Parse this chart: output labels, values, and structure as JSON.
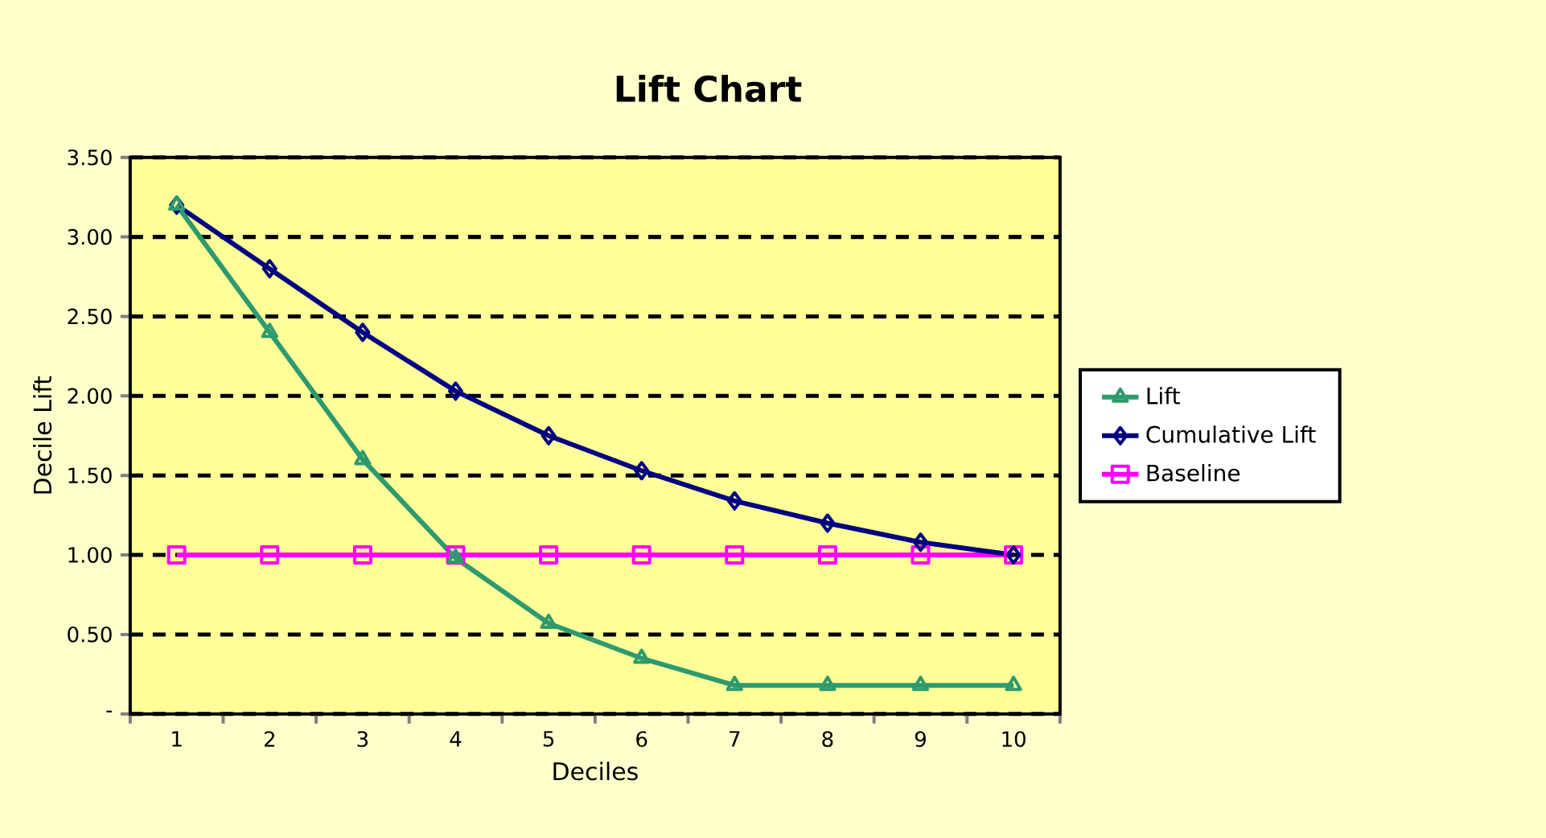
{
  "chart_data": {
    "type": "line",
    "title": "Lift Chart",
    "xlabel": "Deciles",
    "ylabel": "Decile Lift",
    "categories": [
      "1",
      "2",
      "3",
      "4",
      "5",
      "6",
      "7",
      "8",
      "9",
      "10"
    ],
    "series": [
      {
        "name": "Lift",
        "color": "#2e9a6e",
        "marker": "triangle",
        "values": [
          3.2,
          2.4,
          1.6,
          0.98,
          0.57,
          0.35,
          0.18,
          0.18,
          0.18,
          0.18
        ]
      },
      {
        "name": "Cumulative Lift",
        "color": "#000080",
        "marker": "diamond",
        "values": [
          3.2,
          2.8,
          2.4,
          2.03,
          1.75,
          1.53,
          1.34,
          1.2,
          1.08,
          1.0
        ]
      },
      {
        "name": "Baseline",
        "color": "#ff00ff",
        "marker": "square",
        "values": [
          1.0,
          1.0,
          1.0,
          1.0,
          1.0,
          1.0,
          1.0,
          1.0,
          1.0,
          1.0
        ]
      }
    ],
    "ylim": [
      0,
      3.5
    ],
    "yticks": [
      {
        "value": 0,
        "label": "-"
      },
      {
        "value": 0.5,
        "label": "0.50"
      },
      {
        "value": 1,
        "label": "1.00"
      },
      {
        "value": 1.5,
        "label": "1.50"
      },
      {
        "value": 2,
        "label": "2.00"
      },
      {
        "value": 2.5,
        "label": "2.50"
      },
      {
        "value": 3,
        "label": "3.00"
      },
      {
        "value": 3.5,
        "label": "3.50"
      }
    ],
    "grid": "y",
    "legend": "right"
  }
}
